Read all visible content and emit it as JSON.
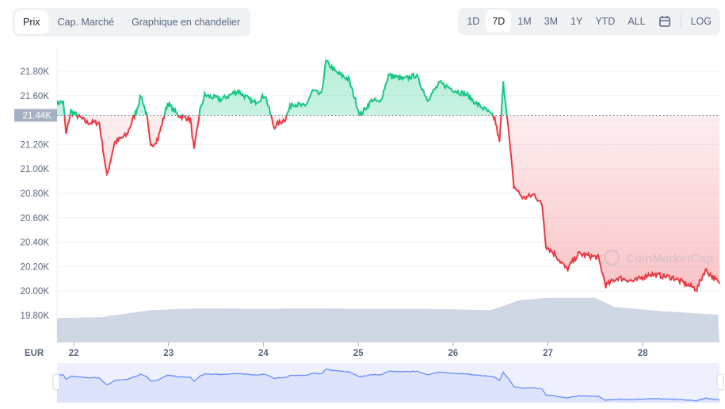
{
  "tabs": [
    {
      "label": "Prix",
      "active": true
    },
    {
      "label": "Cap. Marché",
      "active": false
    },
    {
      "label": "Graphique en chandelier",
      "active": false
    }
  ],
  "ranges": [
    {
      "label": "1D",
      "active": false
    },
    {
      "label": "7D",
      "active": true
    },
    {
      "label": "1M",
      "active": false
    },
    {
      "label": "3M",
      "active": false
    },
    {
      "label": "1Y",
      "active": false
    },
    {
      "label": "YTD",
      "active": false
    },
    {
      "label": "ALL",
      "active": false
    }
  ],
  "calendar_icon": "calendar-icon",
  "log_label": "LOG",
  "currency_label": "EUR",
  "watermark": "CoinMarketCap",
  "colors": {
    "up": "#16c784",
    "down": "#ea3943",
    "volume": "#cfd6e4",
    "navigator": "#6188ff"
  },
  "chart_data": {
    "type": "line",
    "baseline": 21440,
    "baseline_label": "21.44K",
    "ylim": [
      19800,
      21800
    ],
    "yticks": [
      {
        "v": 21800,
        "label": "21.80K"
      },
      {
        "v": 21600,
        "label": "21.60K"
      },
      {
        "v": 21400,
        "label": "21.40K"
      },
      {
        "v": 21200,
        "label": "21.20K"
      },
      {
        "v": 21000,
        "label": "21.00K"
      },
      {
        "v": 20800,
        "label": "20.80K"
      },
      {
        "v": 20600,
        "label": "20.60K"
      },
      {
        "v": 20400,
        "label": "20.40K"
      },
      {
        "v": 20200,
        "label": "20.20K"
      },
      {
        "v": 20000,
        "label": "20.00K"
      },
      {
        "v": 19800,
        "label": "19.80K"
      }
    ],
    "xticks": [
      "22",
      "23",
      "24",
      "25",
      "26",
      "27",
      "28"
    ],
    "price": [
      [
        21.82,
        21540
      ],
      [
        21.89,
        21550
      ],
      [
        21.92,
        21280
      ],
      [
        21.97,
        21475
      ],
      [
        22.14,
        21380
      ],
      [
        22.27,
        21380
      ],
      [
        22.35,
        20940
      ],
      [
        22.43,
        21215
      ],
      [
        22.56,
        21280
      ],
      [
        22.66,
        21475
      ],
      [
        22.71,
        21605
      ],
      [
        22.77,
        21440
      ],
      [
        22.81,
        21180
      ],
      [
        22.89,
        21250
      ],
      [
        22.99,
        21540
      ],
      [
        23.1,
        21440
      ],
      [
        23.23,
        21410
      ],
      [
        23.27,
        21150
      ],
      [
        23.33,
        21475
      ],
      [
        23.38,
        21605
      ],
      [
        23.56,
        21570
      ],
      [
        23.73,
        21640
      ],
      [
        23.9,
        21540
      ],
      [
        24.02,
        21605
      ],
      [
        24.11,
        21345
      ],
      [
        24.23,
        21410
      ],
      [
        24.3,
        21540
      ],
      [
        24.44,
        21510
      ],
      [
        24.52,
        21640
      ],
      [
        24.61,
        21605
      ],
      [
        24.66,
        21880
      ],
      [
        24.77,
        21790
      ],
      [
        24.9,
        21735
      ],
      [
        25.02,
        21440
      ],
      [
        25.15,
        21570
      ],
      [
        25.23,
        21540
      ],
      [
        25.32,
        21770
      ],
      [
        25.48,
        21735
      ],
      [
        25.61,
        21770
      ],
      [
        25.73,
        21570
      ],
      [
        25.86,
        21705
      ],
      [
        26.03,
        21640
      ],
      [
        26.15,
        21605
      ],
      [
        26.24,
        21540
      ],
      [
        26.36,
        21475
      ],
      [
        26.44,
        21410
      ],
      [
        26.49,
        21215
      ],
      [
        26.53,
        21705
      ],
      [
        26.57,
        21440
      ],
      [
        26.64,
        20860
      ],
      [
        26.74,
        20760
      ],
      [
        26.86,
        20790
      ],
      [
        26.94,
        20700
      ],
      [
        26.98,
        20370
      ],
      [
        27.07,
        20305
      ],
      [
        27.2,
        20175
      ],
      [
        27.32,
        20305
      ],
      [
        27.53,
        20275
      ],
      [
        27.61,
        20045
      ],
      [
        27.74,
        20110
      ],
      [
        27.91,
        20080
      ],
      [
        28.07,
        20140
      ],
      [
        28.32,
        20110
      ],
      [
        28.57,
        20015
      ],
      [
        28.66,
        20175
      ],
      [
        28.81,
        20060
      ]
    ],
    "volume_relative": [
      [
        21.82,
        0.53
      ],
      [
        22.3,
        0.55
      ],
      [
        22.8,
        0.7
      ],
      [
        23.3,
        0.74
      ],
      [
        24.0,
        0.73
      ],
      [
        24.5,
        0.74
      ],
      [
        25.0,
        0.73
      ],
      [
        25.5,
        0.73
      ],
      [
        26.0,
        0.72
      ],
      [
        26.4,
        0.7
      ],
      [
        26.7,
        0.92
      ],
      [
        27.0,
        0.97
      ],
      [
        27.5,
        0.97
      ],
      [
        27.7,
        0.77
      ],
      [
        28.2,
        0.68
      ],
      [
        28.81,
        0.6
      ]
    ]
  }
}
